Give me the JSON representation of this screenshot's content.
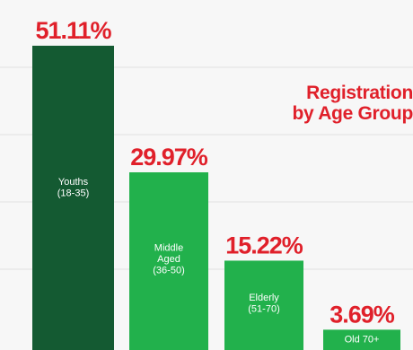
{
  "chart_data": {
    "type": "bar",
    "title": "Registration by Age Group",
    "title_lines": [
      "Registration",
      "by Age Group"
    ],
    "categories": [
      [
        "Youths",
        "(18-35)"
      ],
      [
        "Middle",
        "Aged",
        "(36-50)"
      ],
      [
        "Elderly",
        "(51-70)"
      ],
      [
        "Old 70+"
      ]
    ],
    "values": [
      51.11,
      29.97,
      15.22,
      3.69
    ],
    "value_labels": [
      "51.11%",
      "29.97%",
      "15.22%",
      "3.69%"
    ],
    "ylim": [
      0,
      55
    ],
    "grid": true,
    "colors": {
      "bars": [
        "#145a32",
        "#22b14c",
        "#22b14c",
        "#22b14c"
      ],
      "value_label": "#e0202a",
      "category_label": "#ffffff",
      "grid": "#e2e2e2"
    }
  }
}
